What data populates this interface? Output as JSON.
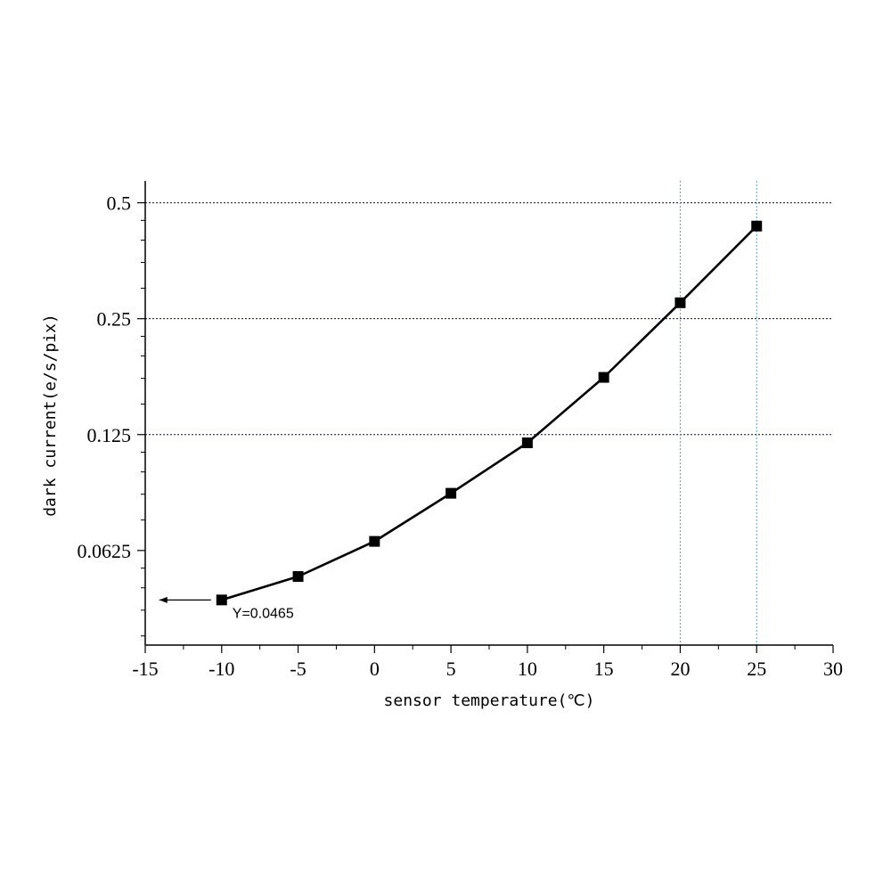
{
  "chart_data": {
    "type": "line",
    "xlabel": "sensor temperature(℃)",
    "ylabel": "dark current(e/s/pix)",
    "xlim": [
      -15,
      30
    ],
    "x_ticks": [
      "-15",
      "-10",
      "-5",
      "0",
      "5",
      "10",
      "15",
      "20",
      "25",
      "30"
    ],
    "y_scale": "log2",
    "ylim": [
      0.0355,
      0.57
    ],
    "y_ticks": [
      "0.0625",
      "0.125",
      "0.25",
      "0.5"
    ],
    "grid": {
      "horizontal_at": [
        0.125,
        0.25,
        0.5
      ],
      "vertical_at": [
        20,
        25
      ]
    },
    "series": [
      {
        "marker": "square",
        "color": "#000000",
        "x": [
          -10,
          -5,
          0,
          5,
          10,
          15,
          20,
          25
        ],
        "y": [
          0.0465,
          0.0535,
          0.066,
          0.088,
          0.119,
          0.176,
          0.275,
          0.435
        ]
      }
    ],
    "annotations": [
      {
        "text": "Y=0.0465",
        "x": -10,
        "y": 0.0465,
        "arrow": "left"
      }
    ],
    "colors": {
      "line": "#000000",
      "hgrid": "#00008b",
      "vgrid": "#00bfff"
    }
  }
}
